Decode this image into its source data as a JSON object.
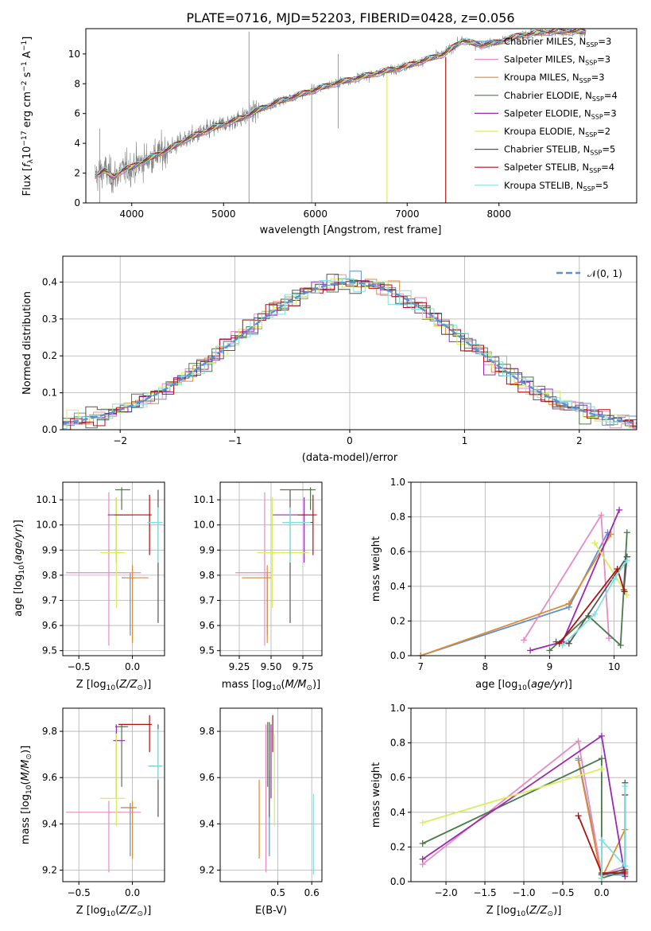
{
  "title": "PLATE=0716, MJD=52203, FIBERID=0428, z=0.056",
  "colors": {
    "Chabrier MILES": "#5b8fd6",
    "Salpeter MILES": "#e88ac4",
    "Kroupa MILES": "#e08a30",
    "Chabrier ELODIE": "#4a7a4a",
    "Salpeter ELODIE": "#9a2ab5",
    "Kroupa ELODIE": "#d8ee5a",
    "Chabrier STELIB": "#555555",
    "Salpeter STELIB": "#b01010",
    "Kroupa STELIB": "#7fe0e0",
    "data": "#808080",
    "normal": "#5b8fd6"
  },
  "chart_data": [
    {
      "id": "spectrum",
      "type": "line",
      "title": "PLATE=0716, MJD=52203, FIBERID=0428, z=0.056",
      "xlabel": "wavelength [Angstrom, rest frame]",
      "ylabel": "Flux [f_λ 10^-17 erg cm^-2 s^-1 A^-1]",
      "xlim": [
        3500,
        9500
      ],
      "ylim": [
        0,
        11.7
      ],
      "xticks": [
        "4000",
        "5000",
        "6000",
        "7000",
        "8000"
      ],
      "yticks": [
        "0",
        "2",
        "4",
        "6",
        "8",
        "10"
      ],
      "x": [
        3600,
        3700,
        3800,
        3900,
        4000,
        4200,
        4400,
        4600,
        4800,
        5000,
        5200,
        5400,
        5600,
        5800,
        6000,
        6200,
        6400,
        6600,
        6800,
        7000,
        7200,
        7400,
        7600,
        7800,
        8000,
        8200,
        8400,
        8600
      ],
      "continuum": [
        1.8,
        2.2,
        1.7,
        2.2,
        2.4,
        3.0,
        3.6,
        4.3,
        4.8,
        5.3,
        5.7,
        6.3,
        6.8,
        7.2,
        7.6,
        8.0,
        8.3,
        8.6,
        8.9,
        9.2,
        9.6,
        10.0,
        10.9,
        10.6,
        10.8,
        11.2,
        11.4,
        11.5
      ],
      "legend": [
        {
          "label": "Chabrier MILES, N",
          "sub": "SSP",
          "suffix": "=3"
        },
        {
          "label": "Salpeter MILES, N",
          "sub": "SSP",
          "suffix": "=3"
        },
        {
          "label": "Kroupa MILES, N",
          "sub": "SSP",
          "suffix": "=3"
        },
        {
          "label": "Chabrier ELODIE, N",
          "sub": "SSP",
          "suffix": "=4"
        },
        {
          "label": "Salpeter ELODIE, N",
          "sub": "SSP",
          "suffix": "=3"
        },
        {
          "label": "Kroupa ELODIE, N",
          "sub": "SSP",
          "suffix": "=2"
        },
        {
          "label": "Chabrier STELIB, N",
          "sub": "SSP",
          "suffix": "=5"
        },
        {
          "label": "Salpeter STELIB, N",
          "sub": "SSP",
          "suffix": "=4"
        },
        {
          "label": "Kroupa STELIB, N",
          "sub": "SSP",
          "suffix": "=5"
        }
      ]
    },
    {
      "id": "residuals",
      "type": "line",
      "xlabel": "(data-model)/error",
      "ylabel": "Normed distribution",
      "xlim": [
        -2.5,
        2.5
      ],
      "ylim": [
        0,
        0.47
      ],
      "xticks": [
        "−2",
        "−1",
        "0",
        "1",
        "2"
      ],
      "yticks": [
        "0.0",
        "0.1",
        "0.2",
        "0.3",
        "0.4"
      ],
      "legend": [
        "𝒩(0, 1)"
      ]
    },
    {
      "id": "age_vs_Z",
      "type": "scatter",
      "xlabel": "Z [log10(Z/Z⊙)]",
      "ylabel": "age [log10(age/yr)]",
      "xlim": [
        -0.65,
        0.3
      ],
      "ylim": [
        9.48,
        10.17
      ],
      "xticks": [
        "−0.5",
        "0.0"
      ],
      "yticks": [
        "9.5",
        "9.6",
        "9.7",
        "9.8",
        "9.9",
        "10.0",
        "10.1"
      ],
      "points": [
        {
          "s": "Chabrier MILES",
          "x": -0.02,
          "y": 9.79,
          "xl": 0.08,
          "xh": 0.04,
          "yl": 0.23,
          "yh": 0.02
        },
        {
          "s": "Salpeter MILES",
          "x": -0.22,
          "y": 9.81,
          "xl": 0.4,
          "xh": 0.3,
          "yl": 0.29,
          "yh": 0.32
        },
        {
          "s": "Kroupa MILES",
          "x": 0.0,
          "y": 9.79,
          "xl": 0.07,
          "xh": 0.15,
          "yl": 0.26,
          "yh": 0.05
        },
        {
          "s": "Chabrier ELODIE",
          "x": -0.1,
          "y": 10.14,
          "xl": 0.06,
          "xh": 0.08,
          "yl": 0.08,
          "yh": 0.01
        },
        {
          "s": "Salpeter ELODIE",
          "x": -0.15,
          "y": 10.04,
          "xl": 0.08,
          "xh": 0.15,
          "yl": 0.19,
          "yh": 0.07
        },
        {
          "s": "Kroupa ELODIE",
          "x": -0.15,
          "y": 9.89,
          "xl": 0.15,
          "xh": 0.08,
          "yl": 0.22,
          "yh": 0.22
        },
        {
          "s": "Chabrier STELIB",
          "x": 0.24,
          "y": 10.01,
          "xl": 0.1,
          "xh": 0.04,
          "yl": 0.4,
          "yh": 0.13
        },
        {
          "s": "Salpeter STELIB",
          "x": 0.16,
          "y": 10.04,
          "xl": 0.33,
          "xh": 0.02,
          "yl": 0.16,
          "yh": 0.08
        },
        {
          "s": "Kroupa STELIB",
          "x": 0.24,
          "y": 10.01,
          "xl": 0.1,
          "xh": 0.04,
          "yl": 0.16,
          "yh": 0.06
        }
      ]
    },
    {
      "id": "age_vs_mass",
      "type": "scatter",
      "xlabel": "mass [log10(M/M⊙)]",
      "xlim": [
        9.1,
        9.9
      ],
      "ylim": [
        9.48,
        10.17
      ],
      "xticks": [
        "9.25",
        "9.50",
        "9.75"
      ],
      "yticks": [
        "9.5",
        "9.6",
        "9.7",
        "9.8",
        "9.9",
        "10.0",
        "10.1"
      ],
      "points": [
        {
          "s": "Chabrier MILES",
          "x": 9.47,
          "y": 9.79,
          "xl": 0.19,
          "xh": 0.02,
          "yl": 0.23,
          "yh": 0.02
        },
        {
          "s": "Salpeter MILES",
          "x": 9.45,
          "y": 9.81,
          "xl": 0.23,
          "xh": 0.05,
          "yl": 0.29,
          "yh": 0.32
        },
        {
          "s": "Kroupa MILES",
          "x": 9.47,
          "y": 9.79,
          "xl": 0.2,
          "xh": 0.03,
          "yl": 0.26,
          "yh": 0.05
        },
        {
          "s": "Chabrier ELODIE",
          "x": 9.81,
          "y": 10.14,
          "xl": 0.24,
          "xh": 0.04,
          "yl": 0.08,
          "yh": 0.01
        },
        {
          "s": "Salpeter ELODIE",
          "x": 9.76,
          "y": 10.04,
          "xl": 0.25,
          "xh": 0.06,
          "yl": 0.19,
          "yh": 0.07
        },
        {
          "s": "Kroupa ELODIE",
          "x": 9.51,
          "y": 9.89,
          "xl": 0.12,
          "xh": 0.29,
          "yl": 0.22,
          "yh": 0.22
        },
        {
          "s": "Chabrier STELIB",
          "x": 9.65,
          "y": 10.01,
          "xl": 0.06,
          "xh": 0.18,
          "yl": 0.4,
          "yh": 0.13
        },
        {
          "s": "Salpeter STELIB",
          "x": 9.83,
          "y": 10.04,
          "xl": 0.12,
          "xh": 0.03,
          "yl": 0.16,
          "yh": 0.08
        },
        {
          "s": "Kroupa STELIB",
          "x": 9.65,
          "y": 10.01,
          "xl": 0.06,
          "xh": 0.16,
          "yl": 0.16,
          "yh": 0.06
        }
      ]
    },
    {
      "id": "weight_vs_age",
      "type": "line",
      "xlabel": "age [log10(age/yr)]",
      "ylabel": "mass weight",
      "xlim": [
        6.85,
        10.35
      ],
      "ylim": [
        0,
        1
      ],
      "xticks": [
        "7",
        "8",
        "9",
        "10"
      ],
      "yticks": [
        "0.0",
        "0.2",
        "0.4",
        "0.6",
        "0.8",
        "1.0"
      ],
      "series": [
        {
          "s": "Chabrier MILES",
          "x": [
            7.0,
            9.3,
            9.9
          ],
          "y": [
            0.0,
            0.28,
            0.71
          ]
        },
        {
          "s": "Salpeter MILES",
          "x": [
            8.6,
            9.8,
            9.92
          ],
          "y": [
            0.09,
            0.81,
            0.1
          ]
        },
        {
          "s": "Kroupa MILES",
          "x": [
            7.0,
            9.3,
            9.95
          ],
          "y": [
            0.0,
            0.3,
            0.7
          ]
        },
        {
          "s": "Chabrier ELODIE",
          "x": [
            9.0,
            9.6,
            10.1,
            10.2
          ],
          "y": [
            0.03,
            0.23,
            0.06,
            0.71
          ]
        },
        {
          "s": "Salpeter ELODIE",
          "x": [
            8.7,
            9.2,
            10.08
          ],
          "y": [
            0.03,
            0.08,
            0.84
          ]
        },
        {
          "s": "Kroupa ELODIE",
          "x": [
            9.7,
            10.2
          ],
          "y": [
            0.65,
            0.35
          ]
        },
        {
          "s": "Chabrier STELIB",
          "x": [
            9.1,
            9.3,
            10.2,
            10.15,
            10.2
          ],
          "y": [
            0.08,
            0.07,
            0.57,
            0.38,
            0.57
          ]
        },
        {
          "s": "Salpeter STELIB",
          "x": [
            9.15,
            10.05,
            10.16
          ],
          "y": [
            0.07,
            0.5,
            0.37
          ]
        },
        {
          "s": "Kroupa STELIB",
          "x": [
            9.2,
            9.7,
            10.0,
            10.2
          ],
          "y": [
            0.06,
            0.24,
            0.44,
            0.55
          ]
        }
      ]
    },
    {
      "id": "mass_vs_Z",
      "type": "scatter",
      "xlabel": "Z [log10(Z/Z⊙)]",
      "ylabel": "mass [log10(M/M⊙)]",
      "xlim": [
        -0.65,
        0.3
      ],
      "ylim": [
        9.15,
        9.9
      ],
      "xticks": [
        "−0.5",
        "0.0"
      ],
      "yticks": [
        "9.2",
        "9.4",
        "9.6",
        "9.8"
      ],
      "points": [
        {
          "s": "Chabrier MILES",
          "x": -0.02,
          "y": 9.47,
          "xl": 0.09,
          "xh": 0.04,
          "yl": 0.21,
          "yh": 0.02
        },
        {
          "s": "Salpeter MILES",
          "x": -0.22,
          "y": 9.45,
          "xl": 0.4,
          "xh": 0.3,
          "yl": 0.26,
          "yh": 0.05
        },
        {
          "s": "Kroupa MILES",
          "x": 0.0,
          "y": 9.47,
          "xl": 0.08,
          "xh": 0.04,
          "yl": 0.22,
          "yh": 0.03
        },
        {
          "s": "Chabrier ELODIE",
          "x": -0.1,
          "y": 9.82,
          "xl": 0.06,
          "xh": 0.06,
          "yl": 0.26,
          "yh": 0.01
        },
        {
          "s": "Salpeter ELODIE",
          "x": -0.15,
          "y": 9.76,
          "xl": 0.03,
          "xh": 0.08,
          "yl": 0.25,
          "yh": 0.07
        },
        {
          "s": "Kroupa ELODIE",
          "x": -0.15,
          "y": 9.51,
          "xl": 0.15,
          "xh": 0.08,
          "yl": 0.12,
          "yh": 0.28
        },
        {
          "s": "Chabrier STELIB",
          "x": 0.24,
          "y": 9.65,
          "xl": 0.09,
          "xh": 0.04,
          "yl": 0.22,
          "yh": 0.18
        },
        {
          "s": "Salpeter STELIB",
          "x": 0.16,
          "y": 9.83,
          "xl": 0.29,
          "xh": 0.02,
          "yl": 0.12,
          "yh": 0.04
        },
        {
          "s": "Kroupa STELIB",
          "x": 0.24,
          "y": 9.65,
          "xl": 0.09,
          "xh": 0.04,
          "yl": 0.06,
          "yh": 0.16
        }
      ]
    },
    {
      "id": "mass_vs_ebv",
      "type": "scatter",
      "xlabel": "E(B-V)",
      "xlim": [
        0.33,
        0.63
      ],
      "ylim": [
        9.15,
        9.9
      ],
      "xticks": [
        "0.5",
        "0.6"
      ],
      "yticks": [
        "9.2",
        "9.4",
        "9.6",
        "9.8"
      ],
      "points": [
        {
          "s": "Chabrier MILES",
          "x": 0.475,
          "y": 9.47,
          "yl": 0.21,
          "yh": 0.16
        },
        {
          "s": "Salpeter MILES",
          "x": 0.465,
          "y": 9.45,
          "yl": 0.26,
          "yh": 0.38
        },
        {
          "s": "Kroupa MILES",
          "x": 0.445,
          "y": 9.47,
          "yl": 0.22,
          "yh": 0.12
        },
        {
          "s": "Chabrier ELODIE",
          "x": 0.47,
          "y": 9.82,
          "yl": 0.26,
          "yh": 0.02
        },
        {
          "s": "Salpeter ELODIE",
          "x": 0.48,
          "y": 9.76,
          "yl": 0.25,
          "yh": 0.07
        },
        {
          "s": "Kroupa ELODIE",
          "x": 0.49,
          "y": 9.51,
          "yl": 0.12,
          "yh": 0.28
        },
        {
          "s": "Chabrier STELIB",
          "x": 0.475,
          "y": 9.65,
          "yl": 0.22,
          "yh": 0.19
        },
        {
          "s": "Salpeter STELIB",
          "x": 0.485,
          "y": 9.83,
          "yl": 0.12,
          "yh": 0.04
        },
        {
          "s": "Kroupa STELIB",
          "x": 0.605,
          "y": 9.36,
          "yl": 0.18,
          "yh": 0.17
        }
      ]
    },
    {
      "id": "weight_vs_Z",
      "type": "line",
      "xlabel": "Z [log10(Z/Z⊙)]",
      "ylabel": "mass weight",
      "xlim": [
        -2.45,
        0.45
      ],
      "ylim": [
        0,
        1
      ],
      "xticks": [
        "−2.0",
        "−1.5",
        "−1.0",
        "−0.5",
        "0.0"
      ],
      "yticks": [
        "0.0",
        "0.2",
        "0.4",
        "0.6",
        "0.8",
        "1.0"
      ],
      "series": [
        {
          "s": "Chabrier MILES",
          "x": [
            -0.3,
            0.0,
            0.3
          ],
          "y": [
            0.71,
            0.04,
            0.04
          ]
        },
        {
          "s": "Salpeter MILES",
          "x": [
            -2.3,
            -0.3,
            0.0,
            0.3
          ],
          "y": [
            0.1,
            0.81,
            0.04,
            0.09
          ]
        },
        {
          "s": "Kroupa MILES",
          "x": [
            -0.3,
            0.0,
            0.3
          ],
          "y": [
            0.7,
            0.02,
            0.3
          ]
        },
        {
          "s": "Chabrier ELODIE",
          "x": [
            -2.3,
            0.0,
            0.0,
            0.3
          ],
          "y": [
            0.22,
            0.71,
            0.02,
            0.06
          ]
        },
        {
          "s": "Salpeter ELODIE",
          "x": [
            -2.3,
            0.0,
            0.3
          ],
          "y": [
            0.13,
            0.84,
            0.03
          ]
        },
        {
          "s": "Kroupa ELODIE",
          "x": [
            -2.3,
            0.0
          ],
          "y": [
            0.34,
            0.65
          ]
        },
        {
          "s": "Chabrier STELIB",
          "x": [
            0.0,
            0.3,
            0.3
          ],
          "y": [
            0.04,
            0.07,
            0.57
          ]
        },
        {
          "s": "Salpeter STELIB",
          "x": [
            -0.3,
            0.0,
            0.3,
            0.3
          ],
          "y": [
            0.38,
            0.05,
            0.05,
            0.5
          ]
        },
        {
          "s": "Kroupa STELIB",
          "x": [
            0.0,
            0.0,
            0.3,
            0.3
          ],
          "y": [
            0.02,
            0.24,
            0.09,
            0.55
          ]
        }
      ]
    }
  ]
}
